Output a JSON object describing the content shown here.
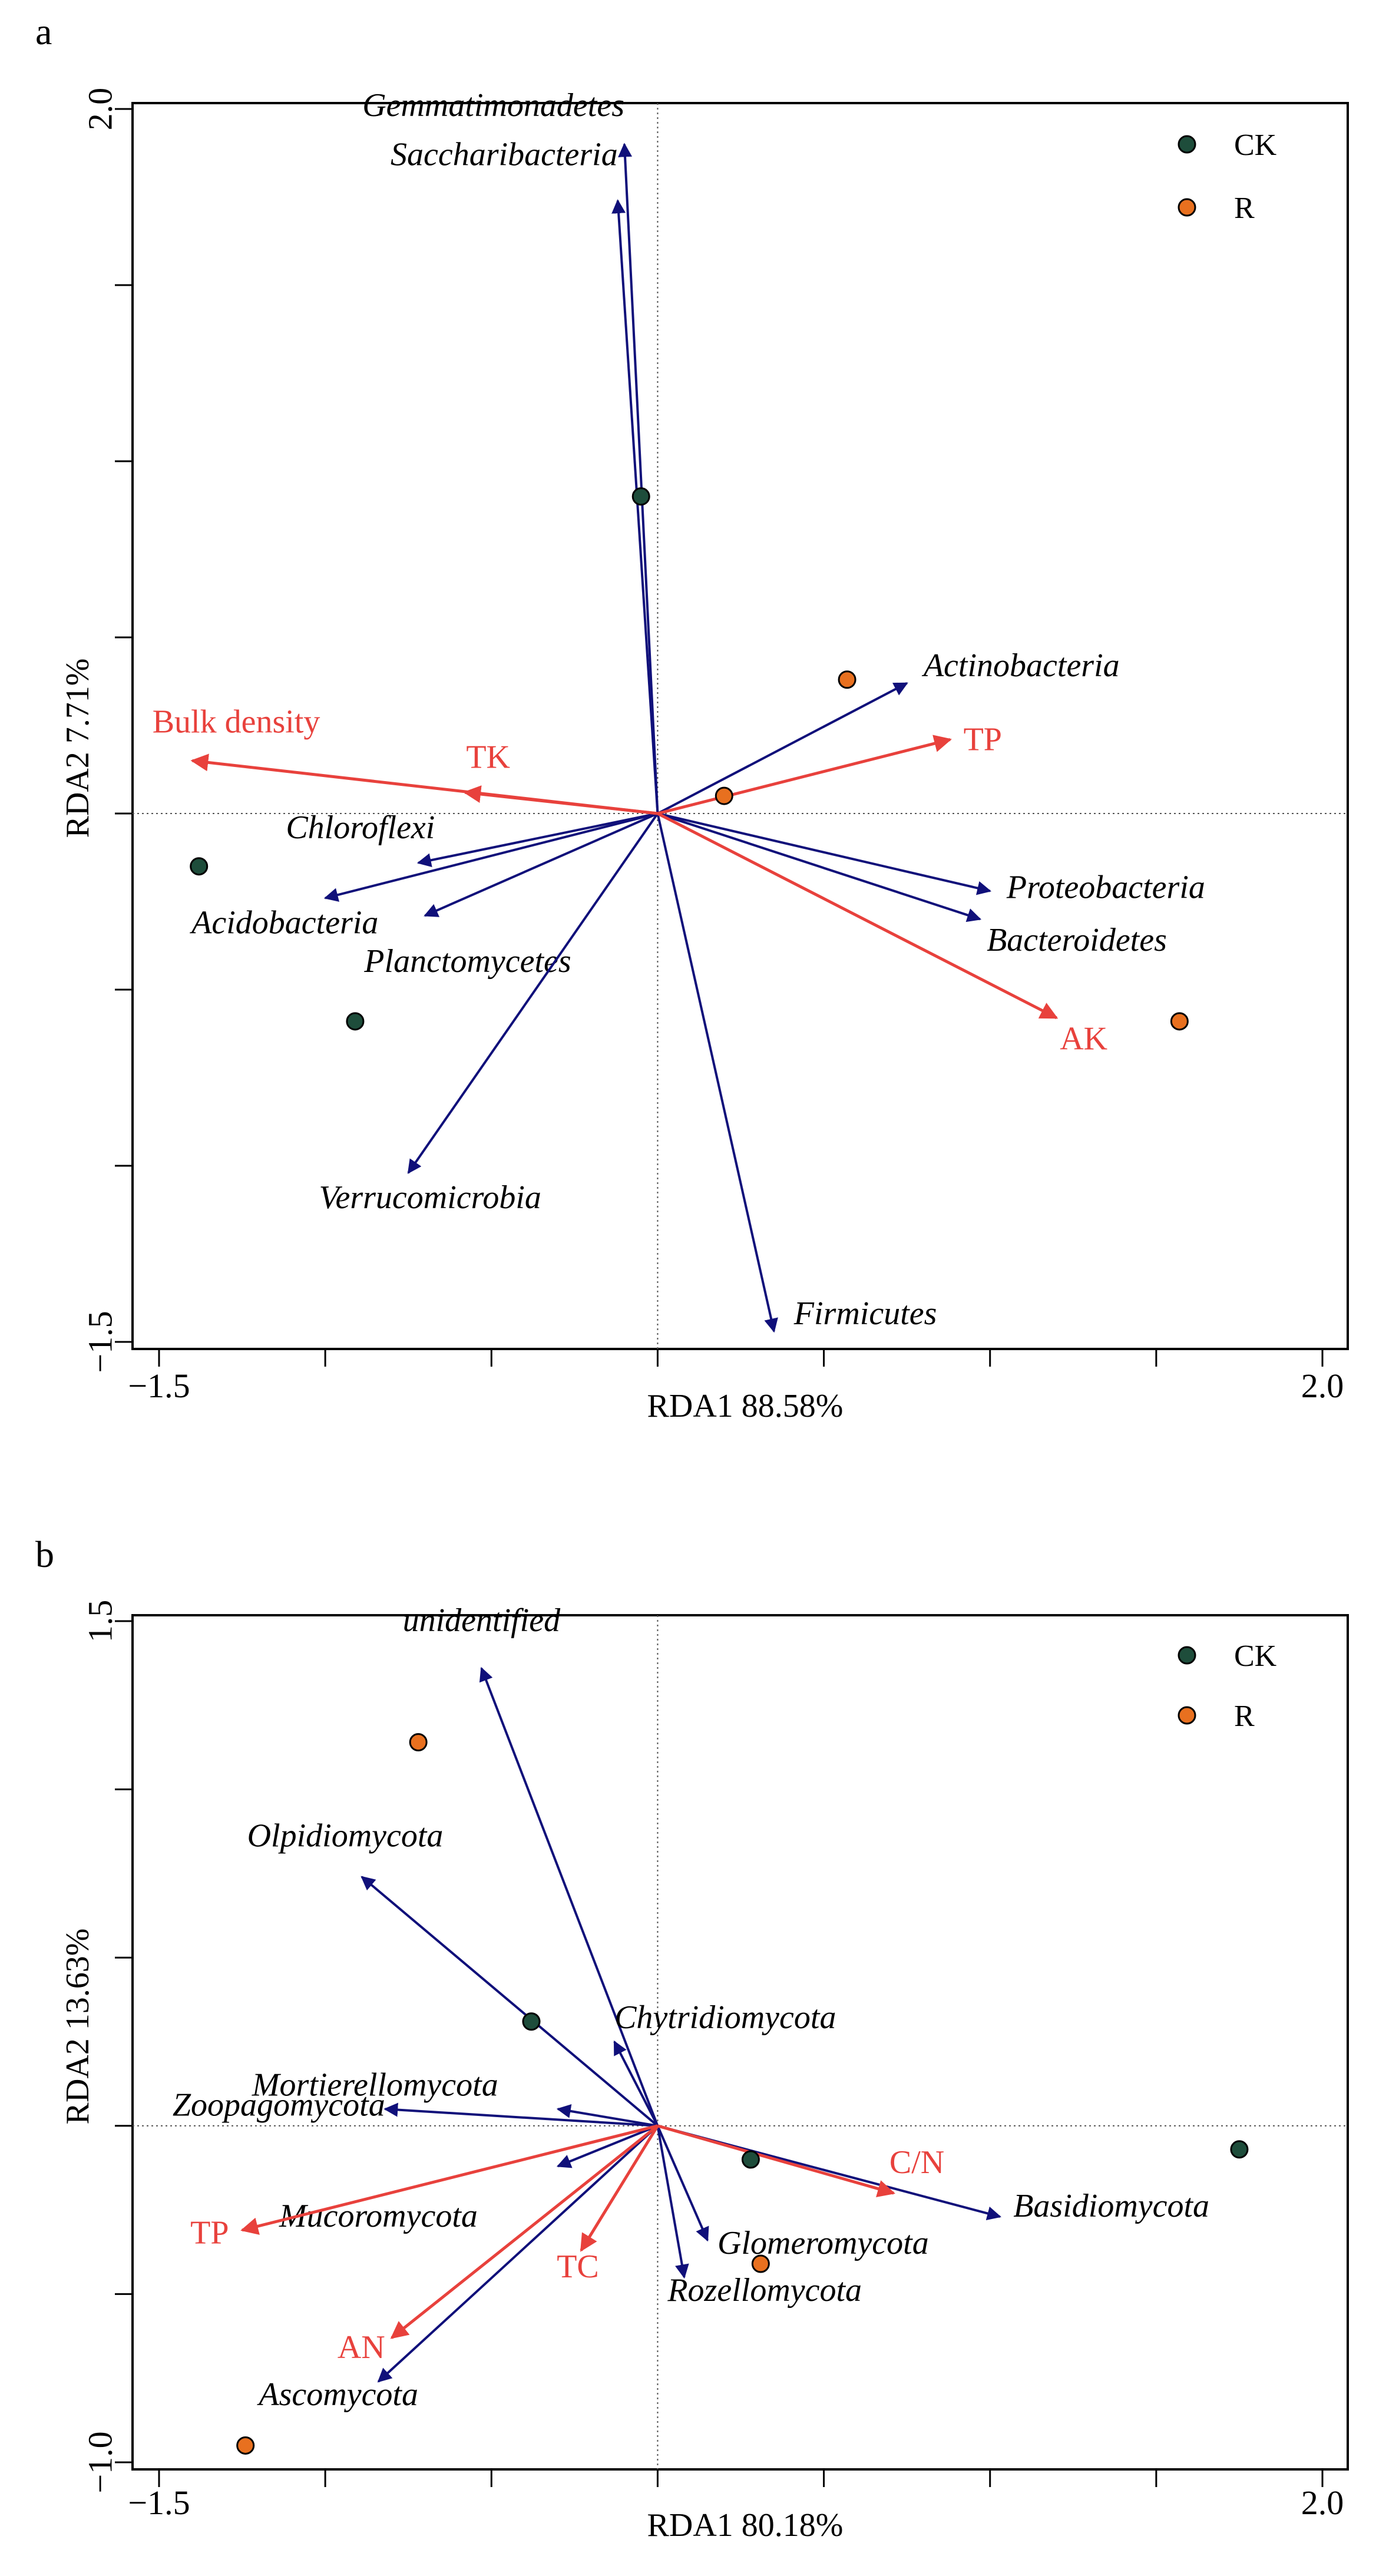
{
  "colors": {
    "species_arrow": "#10107a",
    "env_arrow": "#e8413c",
    "ck_point": "#1e4d3b",
    "r_point": "#e8701f",
    "axis": "#000000",
    "zero_line": "#555555"
  },
  "chart_data": [
    {
      "type": "scatter",
      "panel_label": "a",
      "xlabel": "RDA1 88.58%",
      "ylabel": "RDA2 7.71%",
      "xlim": [
        -1.5,
        2.0
      ],
      "ylim": [
        -1.5,
        2.0
      ],
      "x_tick_labels": [
        {
          "value": -1.5,
          "text": "−1.5"
        },
        {
          "value": 2.0,
          "text": "2.0"
        }
      ],
      "y_tick_labels": [
        {
          "value": 2.0,
          "text": "2.0"
        },
        {
          "value": -1.5,
          "text": "−1.5"
        }
      ],
      "x_minor_ticks": [
        -1.5,
        -1.0,
        -0.5,
        0.0,
        0.5,
        1.0,
        1.5,
        2.0
      ],
      "y_minor_ticks": [
        2.0,
        1.5,
        1.0,
        0.5,
        0.0,
        -0.5,
        -1.0,
        -1.5
      ],
      "legend": [
        {
          "label": "CK",
          "color": "#1e4d3b"
        },
        {
          "label": "R",
          "color": "#e8701f"
        }
      ],
      "species": [
        {
          "name": "Gemmatimonadetes",
          "x": -0.1,
          "y": 1.9,
          "anchor": "end",
          "lx": -0.1,
          "ly": 1.98
        },
        {
          "name": "Saccharibacteria",
          "x": -0.12,
          "y": 1.74,
          "anchor": "end",
          "lx": -0.12,
          "ly": 1.84
        },
        {
          "name": "Actinobacteria",
          "x": 0.75,
          "y": 0.37,
          "anchor": "start",
          "lx": 0.8,
          "ly": 0.39
        },
        {
          "name": "Proteobacteria",
          "x": 1.0,
          "y": -0.22,
          "anchor": "start",
          "lx": 1.05,
          "ly": -0.24
        },
        {
          "name": "Bacteroidetes",
          "x": 0.97,
          "y": -0.3,
          "anchor": "start",
          "lx": 0.99,
          "ly": -0.39
        },
        {
          "name": "Chloroflexi",
          "x": -0.72,
          "y": -0.14,
          "anchor": "end",
          "lx": -0.67,
          "ly": -0.07
        },
        {
          "name": "Acidobacteria",
          "x": -1.0,
          "y": -0.24,
          "anchor": "end",
          "lx": -0.84,
          "ly": -0.34
        },
        {
          "name": "Planctomycetes",
          "x": -0.7,
          "y": -0.29,
          "anchor": "end",
          "lx": -0.26,
          "ly": -0.45
        },
        {
          "name": "Verrucomicrobia",
          "x": -0.75,
          "y": -1.02,
          "anchor": "end",
          "lx": -0.35,
          "ly": -1.12
        },
        {
          "name": "Firmicutes",
          "x": 0.35,
          "y": -1.47,
          "anchor": "start",
          "lx": 0.41,
          "ly": -1.45
        }
      ],
      "env": [
        {
          "name": "Bulk density",
          "x": -1.4,
          "y": 0.15,
          "anchor": "start",
          "lx": -1.52,
          "ly": 0.23
        },
        {
          "name": "TK",
          "x": -0.58,
          "y": 0.06,
          "anchor": "middle",
          "lx": -0.51,
          "ly": 0.13
        },
        {
          "name": "TP",
          "x": 0.88,
          "y": 0.21,
          "anchor": "start",
          "lx": 0.92,
          "ly": 0.18
        },
        {
          "name": "AK",
          "x": 1.2,
          "y": -0.58,
          "anchor": "start",
          "lx": 1.21,
          "ly": -0.67
        }
      ],
      "samples": [
        {
          "group": "CK",
          "x": -0.05,
          "y": 0.9
        },
        {
          "group": "CK",
          "x": -1.38,
          "y": -0.15
        },
        {
          "group": "CK",
          "x": -0.91,
          "y": -0.59
        },
        {
          "group": "R",
          "x": 0.57,
          "y": 0.38
        },
        {
          "group": "R",
          "x": 0.2,
          "y": 0.05
        },
        {
          "group": "R",
          "x": 1.57,
          "y": -0.59
        }
      ]
    },
    {
      "type": "scatter",
      "panel_label": "b",
      "xlabel": "RDA1 80.18%",
      "ylabel": "RDA2 13.63%",
      "xlim": [
        -1.5,
        2.0
      ],
      "ylim": [
        -1.0,
        1.5
      ],
      "x_tick_labels": [
        {
          "value": -1.5,
          "text": "−1.5"
        },
        {
          "value": 2.0,
          "text": "2.0"
        }
      ],
      "y_tick_labels": [
        {
          "value": 1.5,
          "text": "1.5"
        },
        {
          "value": -1.0,
          "text": "−1.0"
        }
      ],
      "x_minor_ticks": [
        -1.5,
        -1.0,
        -0.5,
        0.0,
        0.5,
        1.0,
        1.5,
        2.0
      ],
      "y_minor_ticks": [
        1.5,
        1.0,
        0.5,
        0.0,
        -0.5,
        -1.0
      ],
      "legend": [
        {
          "label": "CK",
          "color": "#1e4d3b"
        },
        {
          "label": "R",
          "color": "#e8701f"
        }
      ],
      "species": [
        {
          "name": "unidentified",
          "x": -0.53,
          "y": 1.36,
          "anchor": "middle",
          "lx": -0.53,
          "ly": 1.47
        },
        {
          "name": "Olpidiomycota",
          "x": -0.89,
          "y": 0.74,
          "anchor": "middle",
          "lx": -0.94,
          "ly": 0.83
        },
        {
          "name": "Chytridiomycota",
          "x": -0.13,
          "y": 0.25,
          "anchor": "start",
          "lx": -0.13,
          "ly": 0.29
        },
        {
          "name": "Mortierellomycota",
          "x": -0.3,
          "y": 0.05,
          "anchor": "middle",
          "lx": -0.85,
          "ly": 0.09
        },
        {
          "name": "Zoopagomycota",
          "x": -0.82,
          "y": 0.05,
          "anchor": "end",
          "lx": -0.82,
          "ly": 0.03
        },
        {
          "name": "Mucoromycota",
          "x": -0.3,
          "y": -0.12,
          "anchor": "middle",
          "lx": -0.84,
          "ly": -0.3
        },
        {
          "name": "Ascomycota",
          "x": -0.84,
          "y": -0.76,
          "anchor": "middle",
          "lx": -0.96,
          "ly": -0.83
        },
        {
          "name": "Glomeromycota",
          "x": 0.15,
          "y": -0.34,
          "anchor": "start",
          "lx": 0.18,
          "ly": -0.38
        },
        {
          "name": "Rozellomycota",
          "x": 0.08,
          "y": -0.45,
          "anchor": "start",
          "lx": 0.03,
          "ly": -0.52
        },
        {
          "name": "Basidiomycota",
          "x": 1.03,
          "y": -0.27,
          "anchor": "start",
          "lx": 1.07,
          "ly": -0.27
        }
      ],
      "env": [
        {
          "name": "TP",
          "x": -1.25,
          "y": -0.31,
          "anchor": "end",
          "lx": -1.29,
          "ly": -0.35
        },
        {
          "name": "TC",
          "x": -0.23,
          "y": -0.37,
          "anchor": "middle",
          "lx": -0.24,
          "ly": -0.45
        },
        {
          "name": "AN",
          "x": -0.8,
          "y": -0.63,
          "anchor": "end",
          "lx": -0.82,
          "ly": -0.69
        },
        {
          "name": "C/N",
          "x": 0.71,
          "y": -0.2,
          "anchor": "middle",
          "lx": 0.78,
          "ly": -0.14
        }
      ],
      "samples": [
        {
          "group": "R",
          "x": -0.72,
          "y": 1.14
        },
        {
          "group": "CK",
          "x": -0.38,
          "y": 0.31
        },
        {
          "group": "CK",
          "x": 0.28,
          "y": -0.1
        },
        {
          "group": "CK",
          "x": 1.75,
          "y": -0.07
        },
        {
          "group": "R",
          "x": 0.31,
          "y": -0.41
        },
        {
          "group": "R",
          "x": -1.24,
          "y": -0.95
        }
      ]
    }
  ]
}
